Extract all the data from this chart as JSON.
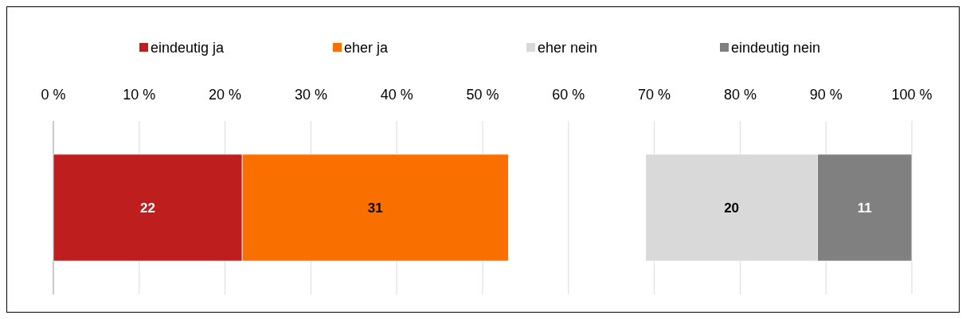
{
  "chart_data": {
    "type": "bar",
    "orientation": "horizontal",
    "categories": [
      null
    ],
    "series": [
      {
        "name": "eindeutig ja",
        "color": "#be1e1e",
        "values": [
          22
        ],
        "base": [
          0
        ]
      },
      {
        "name": "eher ja",
        "color": "#fa7000",
        "values": [
          31
        ],
        "base": [
          22
        ]
      },
      {
        "name": "eher nein",
        "color": "#d9d9d9",
        "values": [
          20
        ],
        "base": [
          69
        ]
      },
      {
        "name": "eindeutig nein",
        "color": "#808080",
        "values": [
          11
        ],
        "base": [
          89
        ]
      }
    ],
    "xlim": [
      0,
      100
    ],
    "xticks": [
      {
        "value": 0,
        "label": "0 %"
      },
      {
        "value": 10,
        "label": "10 %"
      },
      {
        "value": 20,
        "label": "20 %"
      },
      {
        "value": 30,
        "label": "30 %"
      },
      {
        "value": 40,
        "label": "40 %"
      },
      {
        "value": 50,
        "label": "50 %"
      },
      {
        "value": 60,
        "label": "60 %"
      },
      {
        "value": 70,
        "label": "70 %"
      },
      {
        "value": 80,
        "label": "80 %"
      },
      {
        "value": 90,
        "label": "90 %"
      },
      {
        "value": 100,
        "label": "100 %"
      }
    ],
    "grid": "x",
    "legend": "top",
    "data_labels": true
  }
}
